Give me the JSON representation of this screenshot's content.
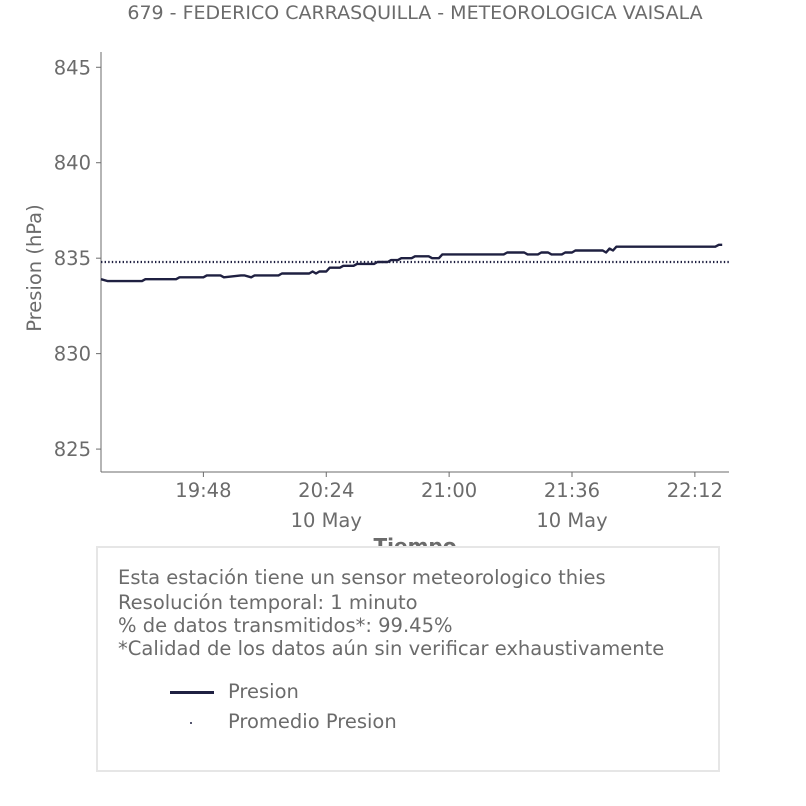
{
  "title": "679 - FEDERICO CARRASQUILLA - METEOROLOGICA VAISALA",
  "info": {
    "line1": "Esta estación tiene un sensor meteorologico thies",
    "line2": "Resolución temporal: 1 minuto",
    "line3": "% de datos transmitidos*: 99.45%",
    "line4": "*Calidad de los datos aún sin verificar exhaustivamente"
  },
  "colors": {
    "series": "#1f2041",
    "text": "#6b6b6b",
    "axis": "#6b6b6b",
    "box_border": "#e6e6e6"
  },
  "chart_data": {
    "type": "line",
    "title": "679 - FEDERICO CARRASQUILLA - METEOROLOGICA VAISALA",
    "xlabel": "Tiempo",
    "ylabel": "Presion (hPa)",
    "ylim": [
      823.8,
      845.8
    ],
    "yticks": [
      845,
      840,
      835,
      830,
      825
    ],
    "xlim": [
      "19:18",
      "22:22"
    ],
    "xticks": [
      {
        "time": "19:48",
        "label": "19:48",
        "sub": ""
      },
      {
        "time": "20:24",
        "label": "20:24",
        "sub": "10 May"
      },
      {
        "time": "21:00",
        "label": "21:00",
        "sub": ""
      },
      {
        "time": "21:36",
        "label": "21:36",
        "sub": "10 May"
      },
      {
        "time": "22:12",
        "label": "22:12",
        "sub": ""
      }
    ],
    "grid": false,
    "legend_position": "bottom",
    "series": [
      {
        "name": "Presion",
        "style": "line",
        "x": [
          "19:18",
          "19:20",
          "19:30",
          "19:31",
          "19:40",
          "19:41",
          "19:48",
          "19:49",
          "19:53",
          "19:54",
          "19:59",
          "20:00",
          "20:02",
          "20:03",
          "20:10",
          "20:11",
          "20:19",
          "20:20",
          "20:21",
          "20:22",
          "20:24",
          "20:25",
          "20:28",
          "20:29",
          "20:32",
          "20:33",
          "20:38",
          "20:39",
          "20:42",
          "20:43",
          "20:45",
          "20:46",
          "20:49",
          "20:50",
          "20:54",
          "20:55",
          "20:57",
          "20:58",
          "21:00",
          "21:01",
          "21:16",
          "21:17",
          "21:22",
          "21:23",
          "21:26",
          "21:27",
          "21:29",
          "21:30",
          "21:33",
          "21:34",
          "21:36",
          "21:37",
          "21:45",
          "21:46",
          "21:47",
          "21:48",
          "21:49",
          "21:50",
          "22:18",
          "22:19",
          "22:20"
        ],
        "y": [
          833.9,
          833.8,
          833.8,
          833.9,
          833.9,
          834.0,
          834.0,
          834.1,
          834.1,
          834.0,
          834.1,
          834.1,
          834.0,
          834.1,
          834.1,
          834.2,
          834.2,
          834.3,
          834.2,
          834.3,
          834.3,
          834.5,
          834.5,
          834.6,
          834.6,
          834.7,
          834.7,
          834.8,
          834.8,
          834.9,
          834.9,
          835.0,
          835.0,
          835.1,
          835.1,
          835.0,
          835.0,
          835.2,
          835.2,
          835.2,
          835.2,
          835.3,
          835.3,
          835.2,
          835.2,
          835.3,
          835.3,
          835.2,
          835.2,
          835.3,
          835.3,
          835.4,
          835.4,
          835.3,
          835.5,
          835.4,
          835.6,
          835.6,
          835.6,
          835.7,
          835.7
        ]
      },
      {
        "name": "Promedio Presion",
        "style": "dotted",
        "x": [
          "19:18",
          "22:22"
        ],
        "y": [
          834.8,
          834.8
        ]
      }
    ]
  }
}
